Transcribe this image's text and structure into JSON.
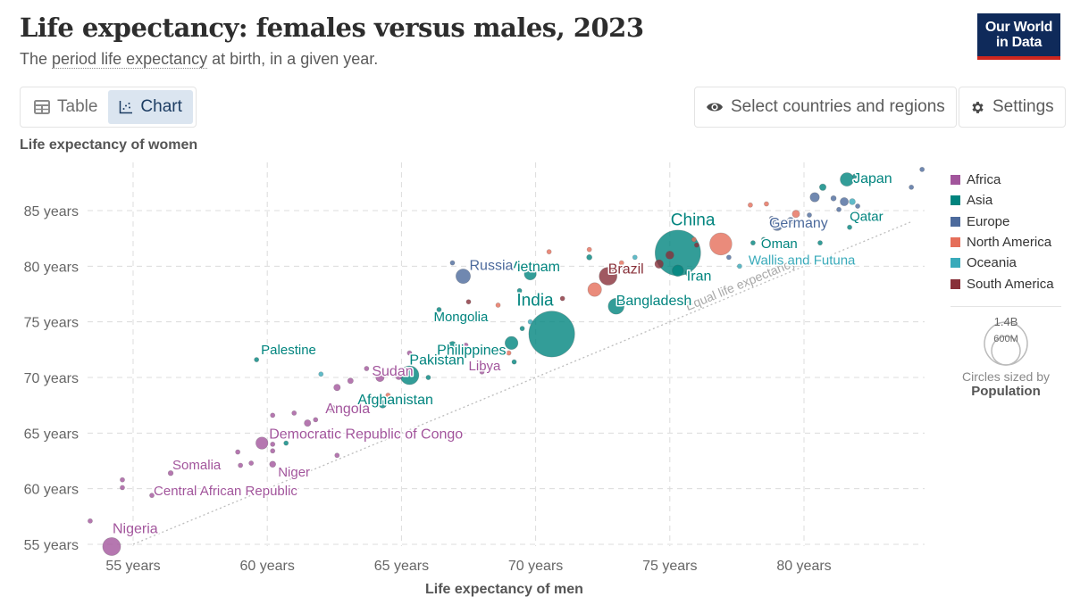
{
  "header": {
    "title": "Life expectancy: females versus males, 2023",
    "subtitle_pre": "The ",
    "subtitle_link": "period life expectancy",
    "subtitle_post": " at birth, in a given year.",
    "logo_line1": "Our World",
    "logo_line2": "in Data"
  },
  "tabs": [
    {
      "label": "Table",
      "icon": "table-icon",
      "active": false
    },
    {
      "label": "Chart",
      "icon": "scatter-chart-icon",
      "active": true
    }
  ],
  "toolbar": {
    "select_label": "Select countries and regions",
    "select_icon": "eye-icon",
    "settings_label": "Settings",
    "settings_icon": "gear-icon"
  },
  "colors": {
    "Africa": "#a2559c",
    "Asia": "#00847e",
    "Europe": "#4c6a9c",
    "North America": "#e56e5a",
    "Oceania": "#38aaba",
    "South America": "#883039"
  },
  "chart_data": {
    "type": "scatter",
    "title": "Life expectancy: females versus males, 2023",
    "xlabel": "Life expectancy of men",
    "ylabel": "Life expectancy of women",
    "xlim": [
      53.5,
      84.5
    ],
    "ylim": [
      54.8,
      89
    ],
    "x_ticks": [
      55,
      60,
      65,
      70,
      75,
      80
    ],
    "x_tick_labels": [
      "55 years",
      "60 years",
      "65 years",
      "70 years",
      "75 years",
      "80 years"
    ],
    "y_ticks": [
      55,
      60,
      65,
      70,
      75,
      80,
      85
    ],
    "y_tick_labels": [
      "55 years",
      "60 years",
      "65 years",
      "70 years",
      "75 years",
      "80 years",
      "85 years"
    ],
    "grid": true,
    "reference_line": {
      "label": "Equal life expectancy",
      "from": [
        55,
        55
      ],
      "to": [
        84,
        84
      ]
    },
    "legend": {
      "position": "right",
      "entries": [
        "Africa",
        "Asia",
        "Europe",
        "North America",
        "Oceania",
        "South America"
      ]
    },
    "size_legend": {
      "title": "Circles sized by",
      "variable": "Population",
      "large_label": "1.4B",
      "small_label": "600M"
    },
    "points": [
      {
        "name": "Nigeria",
        "region": "Africa",
        "x": 54.2,
        "y": 54.8,
        "pop": 220,
        "label": true
      },
      {
        "name": "Central African Republic",
        "region": "Africa",
        "x": 55.7,
        "y": 59.4,
        "pop": 5,
        "label": true
      },
      {
        "name": "Somalia",
        "region": "Africa",
        "x": 56.4,
        "y": 61.4,
        "pop": 18,
        "label": true
      },
      {
        "name": "Democratic Republic of Congo",
        "region": "Africa",
        "x": 59.8,
        "y": 64.1,
        "pop": 100,
        "label": true
      },
      {
        "name": "Niger",
        "region": "Africa",
        "x": 60.2,
        "y": 62.2,
        "pop": 26,
        "label": true
      },
      {
        "name": "Angola",
        "region": "Africa",
        "x": 62.4,
        "y": 67.2,
        "pop": 36,
        "label": true
      },
      {
        "name": "Sudan",
        "region": "Africa",
        "x": 64.2,
        "y": 70.0,
        "pop": 48,
        "label": true
      },
      {
        "name": "Libya",
        "region": "Africa",
        "x": 68.0,
        "y": 70.5,
        "pop": 7,
        "label": true
      },
      {
        "name": "Palestine",
        "region": "Asia",
        "x": 59.6,
        "y": 71.6,
        "pop": 5,
        "label": true
      },
      {
        "name": "Afghanistan",
        "region": "Asia",
        "x": 64.3,
        "y": 67.6,
        "pop": 42,
        "label": true
      },
      {
        "name": "Pakistan",
        "region": "Asia",
        "x": 65.3,
        "y": 70.2,
        "pop": 240,
        "label": true
      },
      {
        "name": "Philippines",
        "region": "Asia",
        "x": 69.1,
        "y": 73.1,
        "pop": 115,
        "label": true
      },
      {
        "name": "India",
        "region": "Asia",
        "x": 70.6,
        "y": 73.9,
        "pop": 1430,
        "label": true
      },
      {
        "name": "Mongolia",
        "region": "Asia",
        "x": 66.4,
        "y": 76.1,
        "pop": 3,
        "label": true
      },
      {
        "name": "Vietnam",
        "region": "Asia",
        "x": 69.8,
        "y": 79.3,
        "pop": 98,
        "label": true
      },
      {
        "name": "Bangladesh",
        "region": "Asia",
        "x": 73.0,
        "y": 76.4,
        "pop": 172,
        "label": true
      },
      {
        "name": "China",
        "region": "Asia",
        "x": 75.3,
        "y": 81.2,
        "pop": 1410,
        "label": true
      },
      {
        "name": "Iran",
        "region": "Asia",
        "x": 75.3,
        "y": 79.6,
        "pop": 89,
        "label": true
      },
      {
        "name": "Oman",
        "region": "Asia",
        "x": 78.1,
        "y": 82.1,
        "pop": 5,
        "label": true
      },
      {
        "name": "Qatar",
        "region": "Asia",
        "x": 81.7,
        "y": 83.5,
        "pop": 3,
        "label": true
      },
      {
        "name": "Japan",
        "region": "Asia",
        "x": 81.6,
        "y": 87.8,
        "pop": 124,
        "label": true
      },
      {
        "name": "Russia",
        "region": "Europe",
        "x": 67.3,
        "y": 79.1,
        "pop": 144,
        "label": true
      },
      {
        "name": "Germany",
        "region": "Europe",
        "x": 79.0,
        "y": 83.7,
        "pop": 84,
        "label": true
      },
      {
        "name": "Brazil",
        "region": "South America",
        "x": 72.7,
        "y": 79.1,
        "pop": 216,
        "label": true
      },
      {
        "name": "Wallis and Futuna",
        "region": "Oceania",
        "x": 77.6,
        "y": 80.0,
        "pop": 1,
        "label": true
      },
      {
        "name": "",
        "region": "North America",
        "x": 76.9,
        "y": 82.0,
        "pop": 335,
        "label": false
      },
      {
        "name": "",
        "region": "North America",
        "x": 72.2,
        "y": 77.9,
        "pop": 128,
        "label": false
      },
      {
        "name": "",
        "region": "Africa",
        "x": 53.4,
        "y": 57.1,
        "pop": 4,
        "label": false
      },
      {
        "name": "",
        "region": "Africa",
        "x": 54.6,
        "y": 60.1,
        "pop": 4,
        "label": false
      },
      {
        "name": "",
        "region": "Africa",
        "x": 54.6,
        "y": 60.8,
        "pop": 4,
        "label": false
      },
      {
        "name": "",
        "region": "Africa",
        "x": 58.9,
        "y": 63.3,
        "pop": 8,
        "label": false
      },
      {
        "name": "",
        "region": "Africa",
        "x": 59.0,
        "y": 62.1,
        "pop": 8,
        "label": false
      },
      {
        "name": "",
        "region": "Africa",
        "x": 59.4,
        "y": 62.3,
        "pop": 8,
        "label": false
      },
      {
        "name": "",
        "region": "Africa",
        "x": 60.2,
        "y": 64.0,
        "pop": 8,
        "label": false
      },
      {
        "name": "",
        "region": "Africa",
        "x": 60.2,
        "y": 63.4,
        "pop": 6,
        "label": false
      },
      {
        "name": "",
        "region": "Africa",
        "x": 60.2,
        "y": 66.6,
        "pop": 12,
        "label": false
      },
      {
        "name": "",
        "region": "Africa",
        "x": 61.0,
        "y": 66.8,
        "pop": 6,
        "label": false
      },
      {
        "name": "",
        "region": "Africa",
        "x": 61.5,
        "y": 65.9,
        "pop": 30,
        "label": false
      },
      {
        "name": "",
        "region": "Africa",
        "x": 61.8,
        "y": 66.2,
        "pop": 10,
        "label": false
      },
      {
        "name": "",
        "region": "Africa",
        "x": 62.6,
        "y": 63.0,
        "pop": 4,
        "label": false
      },
      {
        "name": "",
        "region": "Africa",
        "x": 62.6,
        "y": 69.1,
        "pop": 30,
        "label": false
      },
      {
        "name": "",
        "region": "Africa",
        "x": 63.1,
        "y": 69.7,
        "pop": 22,
        "label": false
      },
      {
        "name": "",
        "region": "Africa",
        "x": 63.7,
        "y": 70.8,
        "pop": 8,
        "label": false
      },
      {
        "name": "",
        "region": "Africa",
        "x": 64.9,
        "y": 70.1,
        "pop": 30,
        "label": false
      },
      {
        "name": "",
        "region": "Africa",
        "x": 64.2,
        "y": 67.8,
        "pop": 6,
        "label": false
      },
      {
        "name": "",
        "region": "Africa",
        "x": 65.3,
        "y": 72.2,
        "pop": 6,
        "label": false
      },
      {
        "name": "",
        "region": "Africa",
        "x": 67.4,
        "y": 72.9,
        "pop": 10,
        "label": false
      },
      {
        "name": "",
        "region": "Asia",
        "x": 60.7,
        "y": 64.1,
        "pop": 3,
        "label": false
      },
      {
        "name": "",
        "region": "Asia",
        "x": 66.0,
        "y": 70.0,
        "pop": 5,
        "label": false
      },
      {
        "name": "",
        "region": "Asia",
        "x": 66.9,
        "y": 72.9,
        "pop": 40,
        "label": false
      },
      {
        "name": "",
        "region": "Asia",
        "x": 69.2,
        "y": 71.4,
        "pop": 5,
        "label": false
      },
      {
        "name": "",
        "region": "Asia",
        "x": 69.5,
        "y": 74.4,
        "pop": 8,
        "label": false
      },
      {
        "name": "",
        "region": "Asia",
        "x": 67.7,
        "y": 75.2,
        "pop": 8,
        "label": false
      },
      {
        "name": "",
        "region": "Asia",
        "x": 69.4,
        "y": 77.8,
        "pop": 10,
        "label": false
      },
      {
        "name": "",
        "region": "Asia",
        "x": 72.0,
        "y": 80.8,
        "pop": 20,
        "label": false
      },
      {
        "name": "",
        "region": "Asia",
        "x": 75.7,
        "y": 79.4,
        "pop": 30,
        "label": false
      },
      {
        "name": "",
        "region": "Asia",
        "x": 78.5,
        "y": 82.4,
        "pop": 5,
        "label": false
      },
      {
        "name": "",
        "region": "Asia",
        "x": 80.7,
        "y": 87.1,
        "pop": 30,
        "label": false
      },
      {
        "name": "",
        "region": "Asia",
        "x": 81.9,
        "y": 88.1,
        "pop": 5,
        "label": false
      },
      {
        "name": "",
        "region": "Asia",
        "x": 80.6,
        "y": 82.1,
        "pop": 4,
        "label": false
      },
      {
        "name": "",
        "region": "Europe",
        "x": 66.9,
        "y": 80.3,
        "pop": 5,
        "label": false
      },
      {
        "name": "",
        "region": "Europe",
        "x": 73.3,
        "y": 79.8,
        "pop": 5,
        "label": false
      },
      {
        "name": "",
        "region": "Europe",
        "x": 77.2,
        "y": 80.8,
        "pop": 5,
        "label": false
      },
      {
        "name": "",
        "region": "Europe",
        "x": 79.5,
        "y": 84.1,
        "pop": 30,
        "label": false
      },
      {
        "name": "",
        "region": "Europe",
        "x": 80.4,
        "y": 86.2,
        "pop": 60,
        "label": false
      },
      {
        "name": "",
        "region": "Europe",
        "x": 81.1,
        "y": 86.1,
        "pop": 20,
        "label": false
      },
      {
        "name": "",
        "region": "Europe",
        "x": 81.5,
        "y": 85.8,
        "pop": 47,
        "label": false
      },
      {
        "name": "",
        "region": "Europe",
        "x": 81.3,
        "y": 85.1,
        "pop": 10,
        "label": false
      },
      {
        "name": "",
        "region": "Europe",
        "x": 80.2,
        "y": 84.6,
        "pop": 8,
        "label": false
      },
      {
        "name": "",
        "region": "Europe",
        "x": 82.0,
        "y": 85.4,
        "pop": 8,
        "label": false
      },
      {
        "name": "",
        "region": "Europe",
        "x": 78.8,
        "y": 84.3,
        "pop": 8,
        "label": false
      },
      {
        "name": "",
        "region": "Europe",
        "x": 84.4,
        "y": 88.7,
        "pop": 3,
        "label": false
      },
      {
        "name": "",
        "region": "Europe",
        "x": 84.0,
        "y": 87.1,
        "pop": 3,
        "label": false
      },
      {
        "name": "",
        "region": "North America",
        "x": 68.6,
        "y": 76.5,
        "pop": 4,
        "label": false
      },
      {
        "name": "",
        "region": "North America",
        "x": 69.0,
        "y": 72.2,
        "pop": 4,
        "label": false
      },
      {
        "name": "",
        "region": "North America",
        "x": 70.5,
        "y": 81.3,
        "pop": 4,
        "label": false
      },
      {
        "name": "",
        "region": "North America",
        "x": 72.0,
        "y": 81.5,
        "pop": 4,
        "label": false
      },
      {
        "name": "",
        "region": "North America",
        "x": 73.2,
        "y": 80.3,
        "pop": 4,
        "label": false
      },
      {
        "name": "",
        "region": "North America",
        "x": 75.9,
        "y": 82.4,
        "pop": 4,
        "label": false
      },
      {
        "name": "",
        "region": "North America",
        "x": 78.0,
        "y": 85.5,
        "pop": 4,
        "label": false
      },
      {
        "name": "",
        "region": "North America",
        "x": 78.6,
        "y": 85.6,
        "pop": 4,
        "label": false
      },
      {
        "name": "",
        "region": "North America",
        "x": 79.7,
        "y": 84.7,
        "pop": 38,
        "label": false
      },
      {
        "name": "",
        "region": "North America",
        "x": 64.5,
        "y": 68.4,
        "pop": 4,
        "label": false
      },
      {
        "name": "",
        "region": "Oceania",
        "x": 62.0,
        "y": 70.3,
        "pop": 10,
        "label": false
      },
      {
        "name": "",
        "region": "Oceania",
        "x": 69.8,
        "y": 75.0,
        "pop": 4,
        "label": false
      },
      {
        "name": "",
        "region": "Oceania",
        "x": 73.7,
        "y": 80.8,
        "pop": 4,
        "label": false
      },
      {
        "name": "",
        "region": "Oceania",
        "x": 81.8,
        "y": 85.8,
        "pop": 26,
        "label": false
      },
      {
        "name": "",
        "region": "South America",
        "x": 67.5,
        "y": 76.8,
        "pop": 8,
        "label": false
      },
      {
        "name": "",
        "region": "South America",
        "x": 74.6,
        "y": 80.2,
        "pop": 50,
        "label": false
      },
      {
        "name": "",
        "region": "South America",
        "x": 75.0,
        "y": 81.0,
        "pop": 45,
        "label": false
      },
      {
        "name": "",
        "region": "South America",
        "x": 76.0,
        "y": 81.9,
        "pop": 5,
        "label": false
      },
      {
        "name": "",
        "region": "South America",
        "x": 71.0,
        "y": 77.1,
        "pop": 5,
        "label": false
      }
    ]
  }
}
